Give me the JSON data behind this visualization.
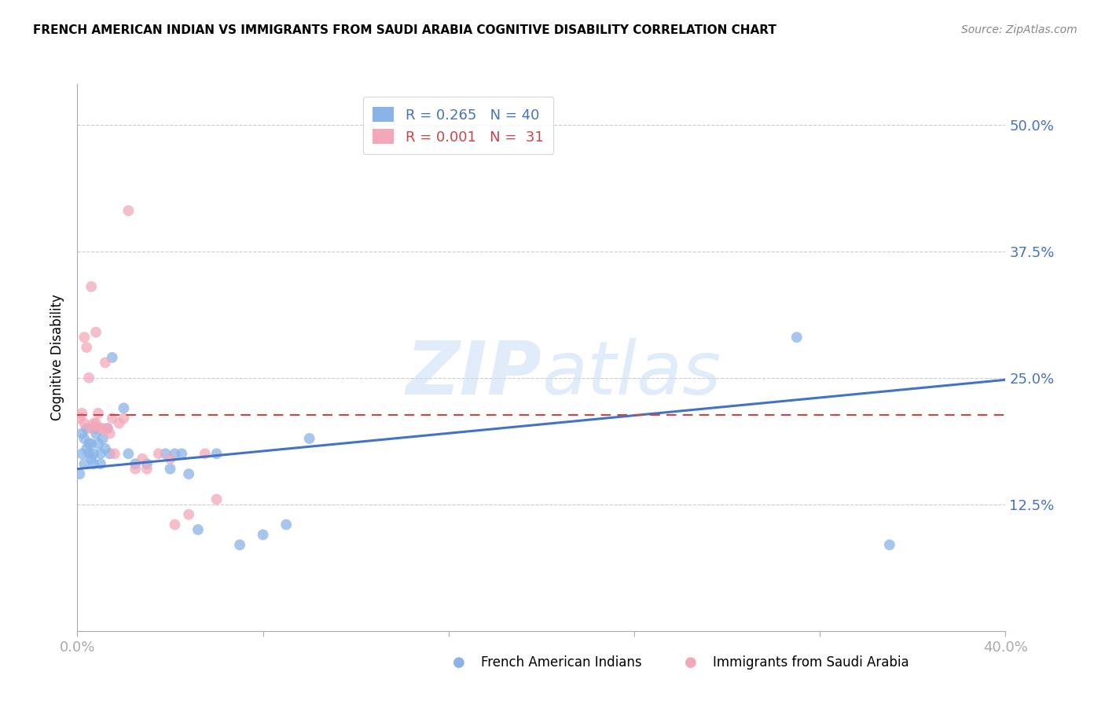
{
  "title": "FRENCH AMERICAN INDIAN VS IMMIGRANTS FROM SAUDI ARABIA COGNITIVE DISABILITY CORRELATION CHART",
  "source": "Source: ZipAtlas.com",
  "ylabel": "Cognitive Disability",
  "y_ticks": [
    0.0,
    0.125,
    0.25,
    0.375,
    0.5
  ],
  "y_tick_labels": [
    "",
    "12.5%",
    "25.0%",
    "37.5%",
    "50.0%"
  ],
  "x_lim": [
    0.0,
    0.4
  ],
  "y_lim": [
    0.0,
    0.54
  ],
  "series1_color": "#8ab4e8",
  "series2_color": "#f4a7b9",
  "trendline1_color": "#4472c4",
  "trendline2_color": "#cc4444",
  "series1_x": [
    0.001,
    0.002,
    0.002,
    0.003,
    0.003,
    0.004,
    0.004,
    0.005,
    0.005,
    0.006,
    0.006,
    0.007,
    0.007,
    0.008,
    0.008,
    0.009,
    0.01,
    0.01,
    0.011,
    0.012,
    0.013,
    0.014,
    0.015,
    0.02,
    0.022,
    0.025,
    0.03,
    0.038,
    0.04,
    0.042,
    0.045,
    0.048,
    0.052,
    0.06,
    0.07,
    0.08,
    0.09,
    0.1,
    0.31,
    0.35
  ],
  "series1_y": [
    0.155,
    0.175,
    0.195,
    0.165,
    0.19,
    0.18,
    0.2,
    0.175,
    0.185,
    0.17,
    0.185,
    0.175,
    0.165,
    0.195,
    0.2,
    0.185,
    0.175,
    0.165,
    0.19,
    0.18,
    0.2,
    0.175,
    0.27,
    0.22,
    0.175,
    0.165,
    0.165,
    0.175,
    0.16,
    0.175,
    0.175,
    0.155,
    0.1,
    0.175,
    0.085,
    0.095,
    0.105,
    0.19,
    0.29,
    0.085
  ],
  "series2_x": [
    0.001,
    0.002,
    0.003,
    0.003,
    0.004,
    0.005,
    0.006,
    0.006,
    0.007,
    0.008,
    0.008,
    0.009,
    0.01,
    0.011,
    0.012,
    0.013,
    0.014,
    0.015,
    0.016,
    0.018,
    0.02,
    0.022,
    0.025,
    0.028,
    0.03,
    0.035,
    0.04,
    0.042,
    0.048,
    0.055,
    0.06
  ],
  "series2_y": [
    0.21,
    0.215,
    0.205,
    0.29,
    0.28,
    0.25,
    0.2,
    0.34,
    0.205,
    0.205,
    0.295,
    0.215,
    0.2,
    0.2,
    0.265,
    0.2,
    0.195,
    0.21,
    0.175,
    0.205,
    0.21,
    0.415,
    0.16,
    0.17,
    0.16,
    0.175,
    0.17,
    0.105,
    0.115,
    0.175,
    0.13
  ],
  "trendline1_x0": 0.0,
  "trendline1_y0": 0.16,
  "trendline1_x1": 0.4,
  "trendline1_y1": 0.248,
  "trendline2_x0": 0.0,
  "trendline2_y0": 0.213,
  "trendline2_x1": 0.4,
  "trendline2_y1": 0.213,
  "x_tick_positions": [
    0.0,
    0.08,
    0.16,
    0.24,
    0.32,
    0.4
  ],
  "x_tick_labels_show": [
    "0.0%",
    "",
    "",
    "",
    "",
    "40.0%"
  ]
}
